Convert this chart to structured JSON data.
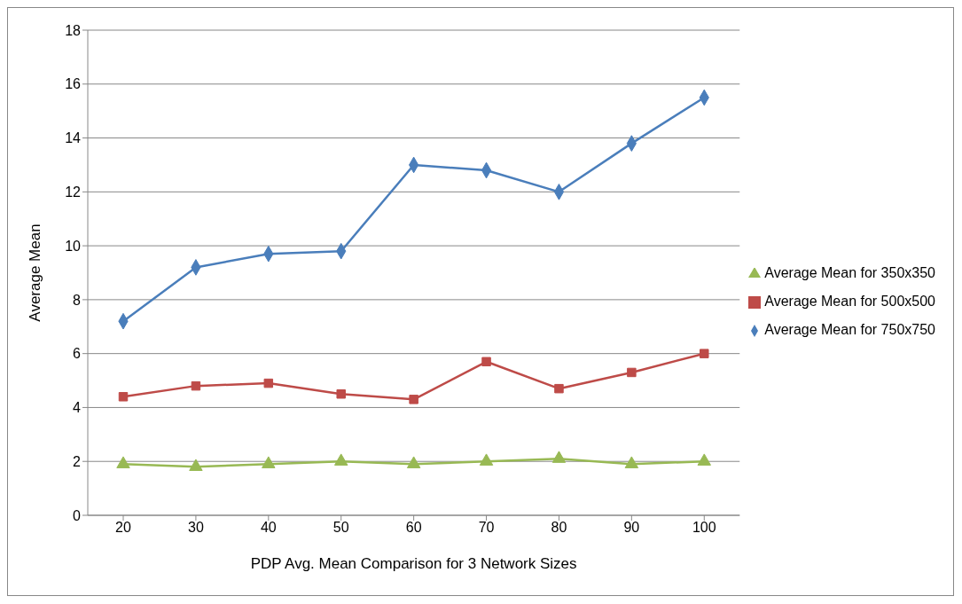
{
  "chart_data": {
    "type": "line",
    "xlabel": "PDP Avg. Mean Comparison for 3 Network Sizes",
    "ylabel": "Average Mean",
    "categories": [
      "20",
      "30",
      "40",
      "50",
      "60",
      "70",
      "80",
      "90",
      "100"
    ],
    "series": [
      {
        "name": "Average Mean for 750x750",
        "color": "#4a7ebb",
        "marker": "diamond",
        "values": [
          7.2,
          9.2,
          9.7,
          9.8,
          13.0,
          12.8,
          12.0,
          13.8,
          15.5
        ]
      },
      {
        "name": "Average Mean for 500x500",
        "color": "#be4b48",
        "marker": "square",
        "values": [
          4.4,
          4.8,
          4.9,
          4.5,
          4.3,
          5.7,
          4.7,
          5.3,
          6.0
        ]
      },
      {
        "name": "Average Mean for 350x350",
        "color": "#98b954",
        "marker": "triangle",
        "values": [
          1.9,
          1.8,
          1.9,
          2.0,
          1.9,
          2.0,
          2.1,
          1.9,
          2.0
        ]
      }
    ],
    "ylim": [
      0,
      18
    ],
    "yticks": [
      0,
      2,
      4,
      6,
      8,
      10,
      12,
      14,
      16,
      18
    ],
    "grid": "y",
    "legend": "right"
  }
}
